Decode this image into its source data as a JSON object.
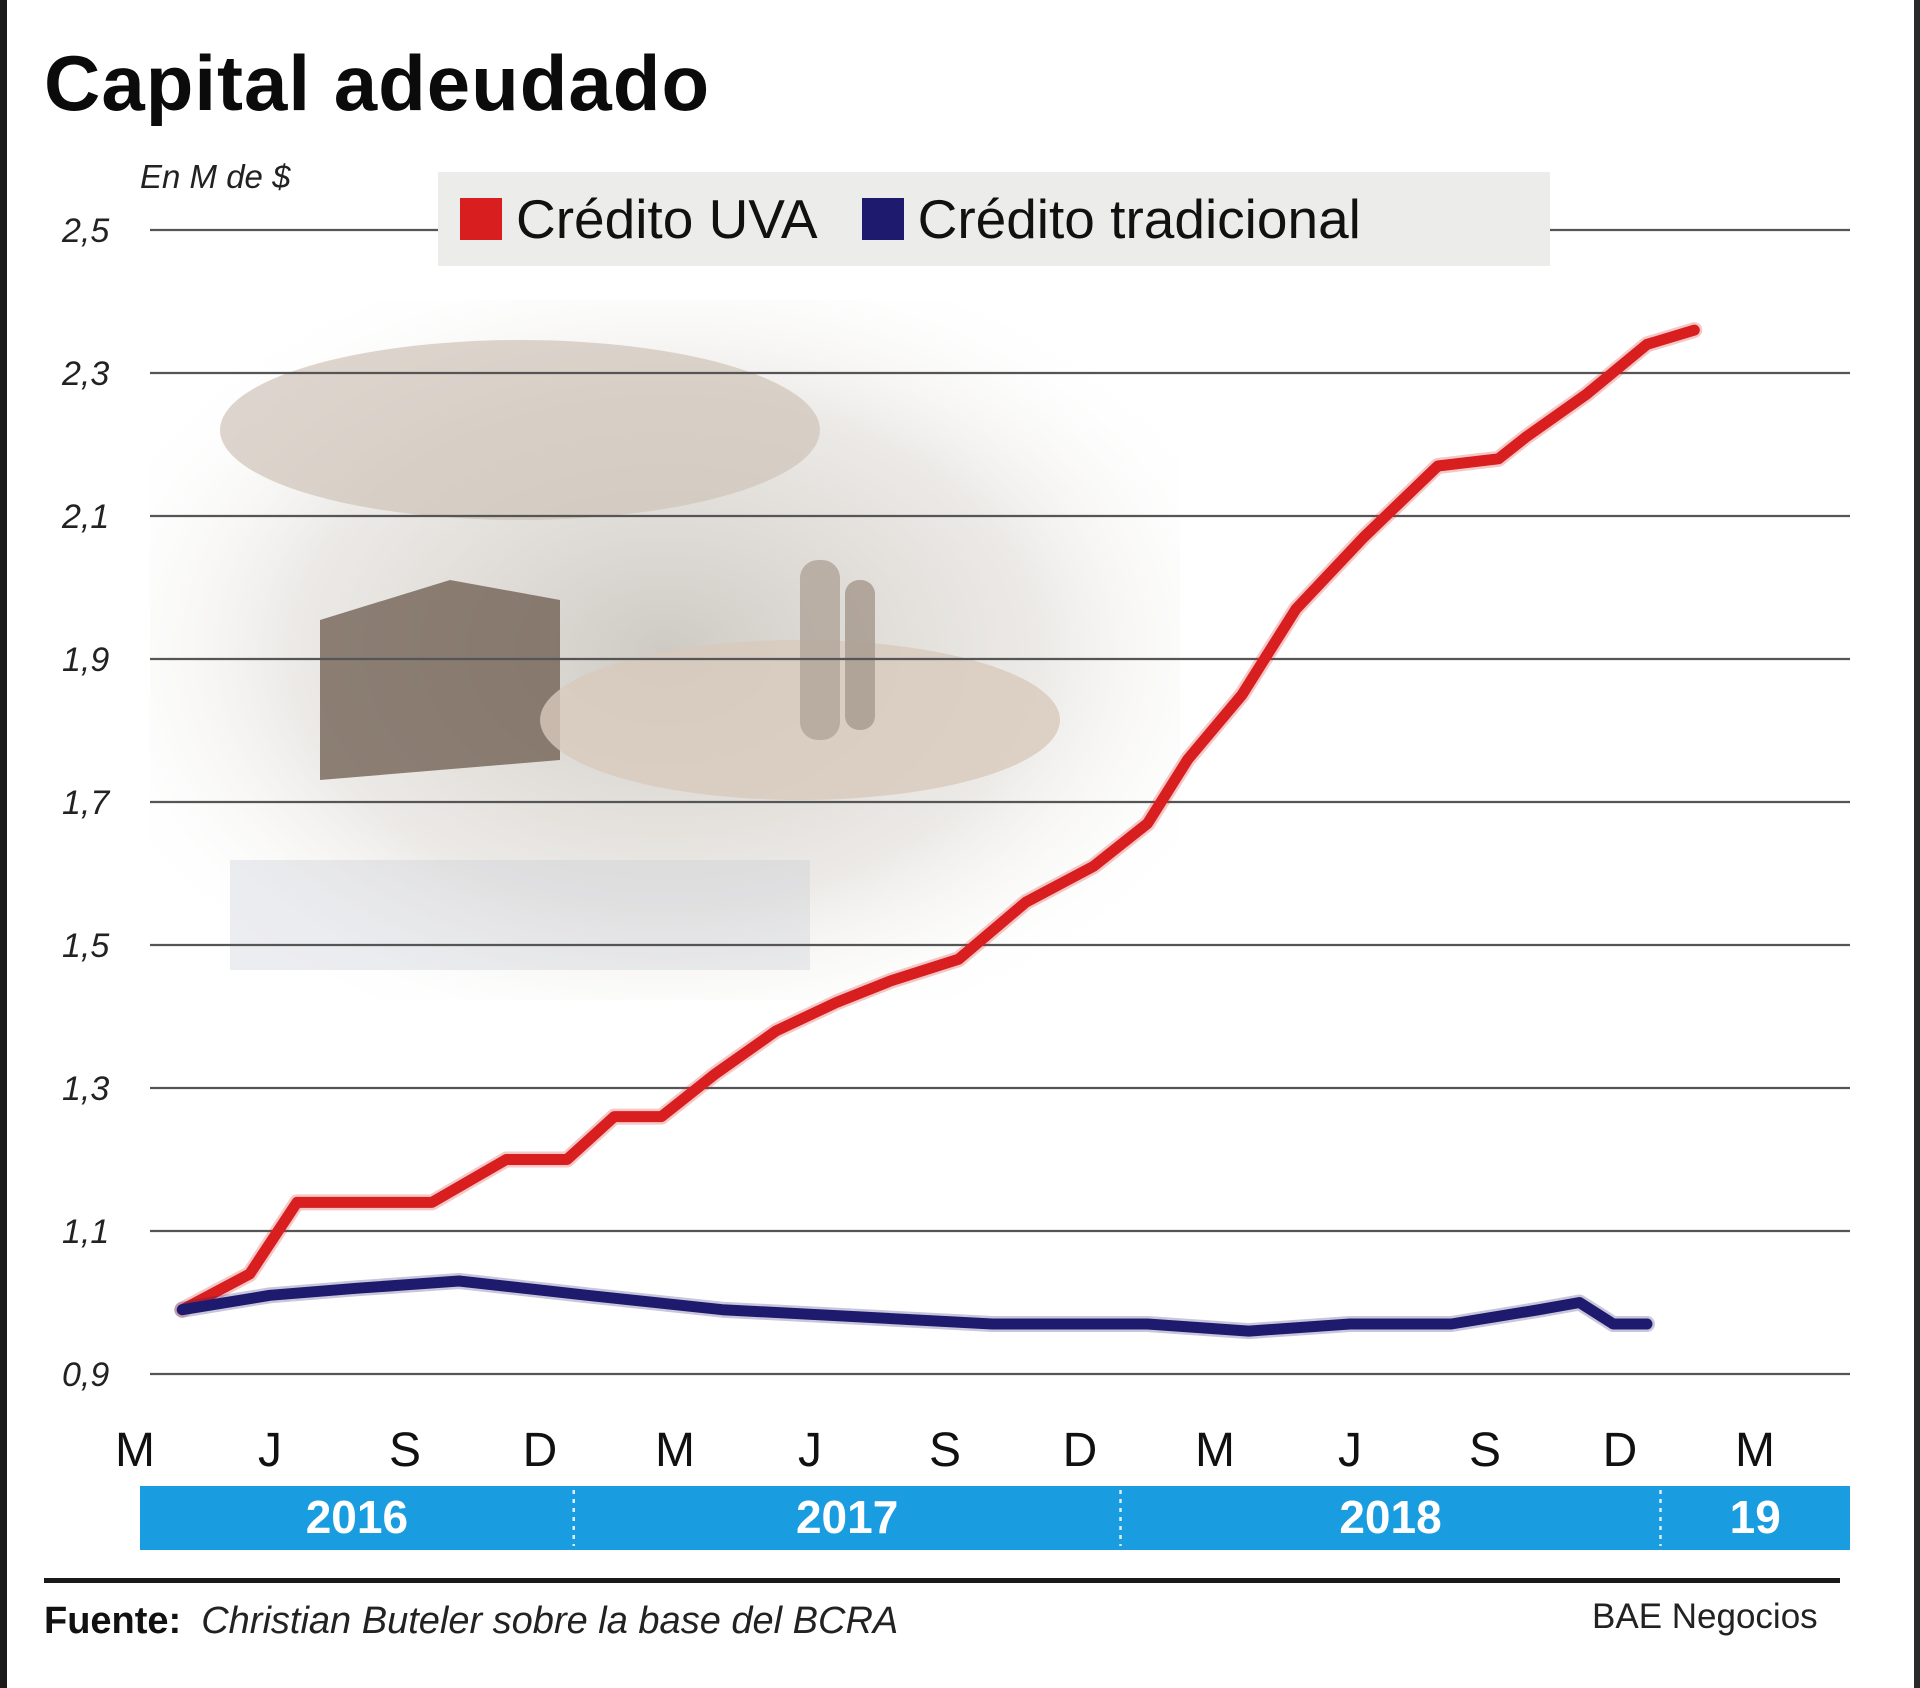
{
  "title": "Capital adeudado",
  "unit": "En M de $",
  "legend": [
    {
      "label": "Crédito UVA",
      "color": "#d81e1e"
    },
    {
      "label": "Crédito tradicional",
      "color": "#1e1a6e"
    }
  ],
  "source_label": "Fuente:",
  "source_text": "Christian Buteler sobre la base del BCRA",
  "credit": "BAE Negocios",
  "chart_data": {
    "type": "line",
    "ylabel": "En M de $",
    "ylim": [
      0.9,
      2.5
    ],
    "y_ticks": [
      "0,9",
      "1,1",
      "1,3",
      "1,5",
      "1,7",
      "1,9",
      "2,1",
      "2,3",
      "2,5"
    ],
    "y_tick_values": [
      0.9,
      1.1,
      1.3,
      1.5,
      1.7,
      1.9,
      2.1,
      2.3,
      2.5
    ],
    "month_labels": [
      "M",
      "J",
      "S",
      "D",
      "M",
      "J",
      "S",
      "D",
      "M",
      "J",
      "S",
      "D",
      "M"
    ],
    "years": [
      {
        "label": "2016",
        "from": 0,
        "to": 3.25
      },
      {
        "label": "2017",
        "from": 3.25,
        "to": 7.3
      },
      {
        "label": "2018",
        "from": 7.3,
        "to": 11.3
      },
      {
        "label": "19",
        "from": 11.3,
        "to": 12.75
      }
    ],
    "grid": true,
    "legend_position": "top",
    "series": [
      {
        "name": "Crédito UVA",
        "color": "#d81e1e",
        "x": [
          0.35,
          0.85,
          1.2,
          1.6,
          2.2,
          2.75,
          3.2,
          3.55,
          3.9,
          4.3,
          4.75,
          5.2,
          5.6,
          6.1,
          6.6,
          7.1,
          7.5,
          7.8,
          8.2,
          8.6,
          9.1,
          9.65,
          10.1,
          10.3,
          10.75,
          11.2,
          11.55
        ],
        "values": [
          0.99,
          1.04,
          1.14,
          1.14,
          1.14,
          1.2,
          1.2,
          1.26,
          1.26,
          1.32,
          1.38,
          1.42,
          1.45,
          1.48,
          1.56,
          1.61,
          1.67,
          1.76,
          1.85,
          1.97,
          2.07,
          2.17,
          2.18,
          2.21,
          2.27,
          2.34,
          2.36
        ]
      },
      {
        "name": "Crédito tradicional",
        "color": "#1e1a6e",
        "x": [
          0.35,
          1.0,
          1.65,
          2.4,
          3.35,
          4.35,
          5.35,
          6.35,
          7.5,
          8.25,
          9.0,
          9.75,
          10.4,
          10.7,
          10.95,
          11.2
        ],
        "values": [
          0.99,
          1.01,
          1.02,
          1.03,
          1.01,
          0.99,
          0.98,
          0.97,
          0.97,
          0.96,
          0.97,
          0.97,
          0.99,
          1.0,
          0.97,
          0.97
        ]
      }
    ]
  }
}
